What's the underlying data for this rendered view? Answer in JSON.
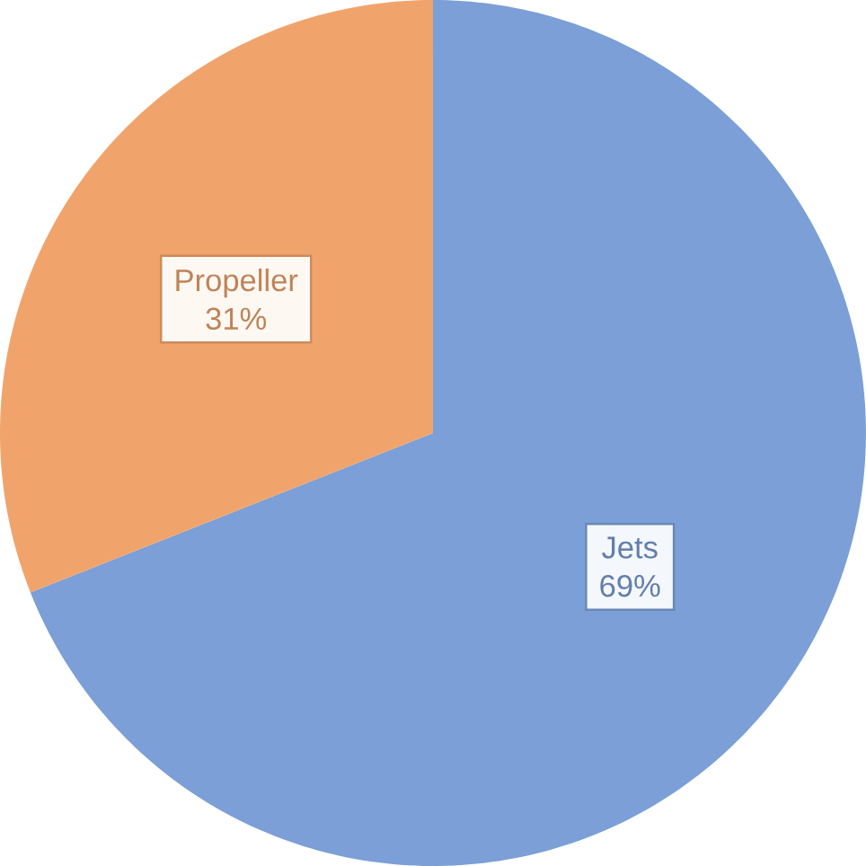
{
  "chart_data": {
    "type": "pie",
    "categories": [
      "Jets",
      "Propeller"
    ],
    "values": [
      69,
      31
    ],
    "colors": [
      "#7b9fd6",
      "#f0a46c"
    ],
    "data_labels": true,
    "value_labels": [
      "69%",
      "31%"
    ]
  }
}
